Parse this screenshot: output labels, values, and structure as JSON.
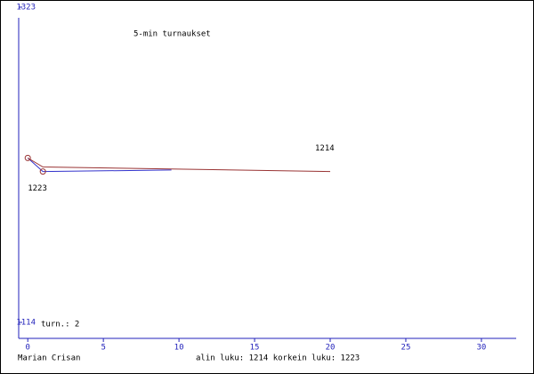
{
  "chart_data": {
    "type": "line",
    "title": "5-min turnaukset",
    "games_label": "turn.: 2",
    "player": "Marian Crisan",
    "summary": "alin luku: 1214  korkein luku: 1223",
    "xlim": [
      -0.6,
      32.3
    ],
    "xticks": [
      0,
      5,
      10,
      15,
      20,
      25,
      30
    ],
    "ylim": [
      1114,
      1323
    ],
    "yticks": [
      1114,
      1323
    ],
    "series": [
      {
        "color": "#3333cc",
        "x": [
          0,
          1,
          9.5
        ],
        "values": [
          1223,
          1214,
          1215
        ]
      },
      {
        "color": "#993333",
        "x": [
          0,
          1,
          20
        ],
        "values": [
          1223,
          1217,
          1214
        ]
      }
    ],
    "points": {
      "color": "#993333",
      "x": [
        0,
        1
      ],
      "values": [
        1223,
        1214
      ]
    },
    "annotations": [
      {
        "text": "1223",
        "x": 0,
        "y": 1223
      },
      {
        "text": "1214",
        "x": 19,
        "y": 1214
      }
    ]
  }
}
